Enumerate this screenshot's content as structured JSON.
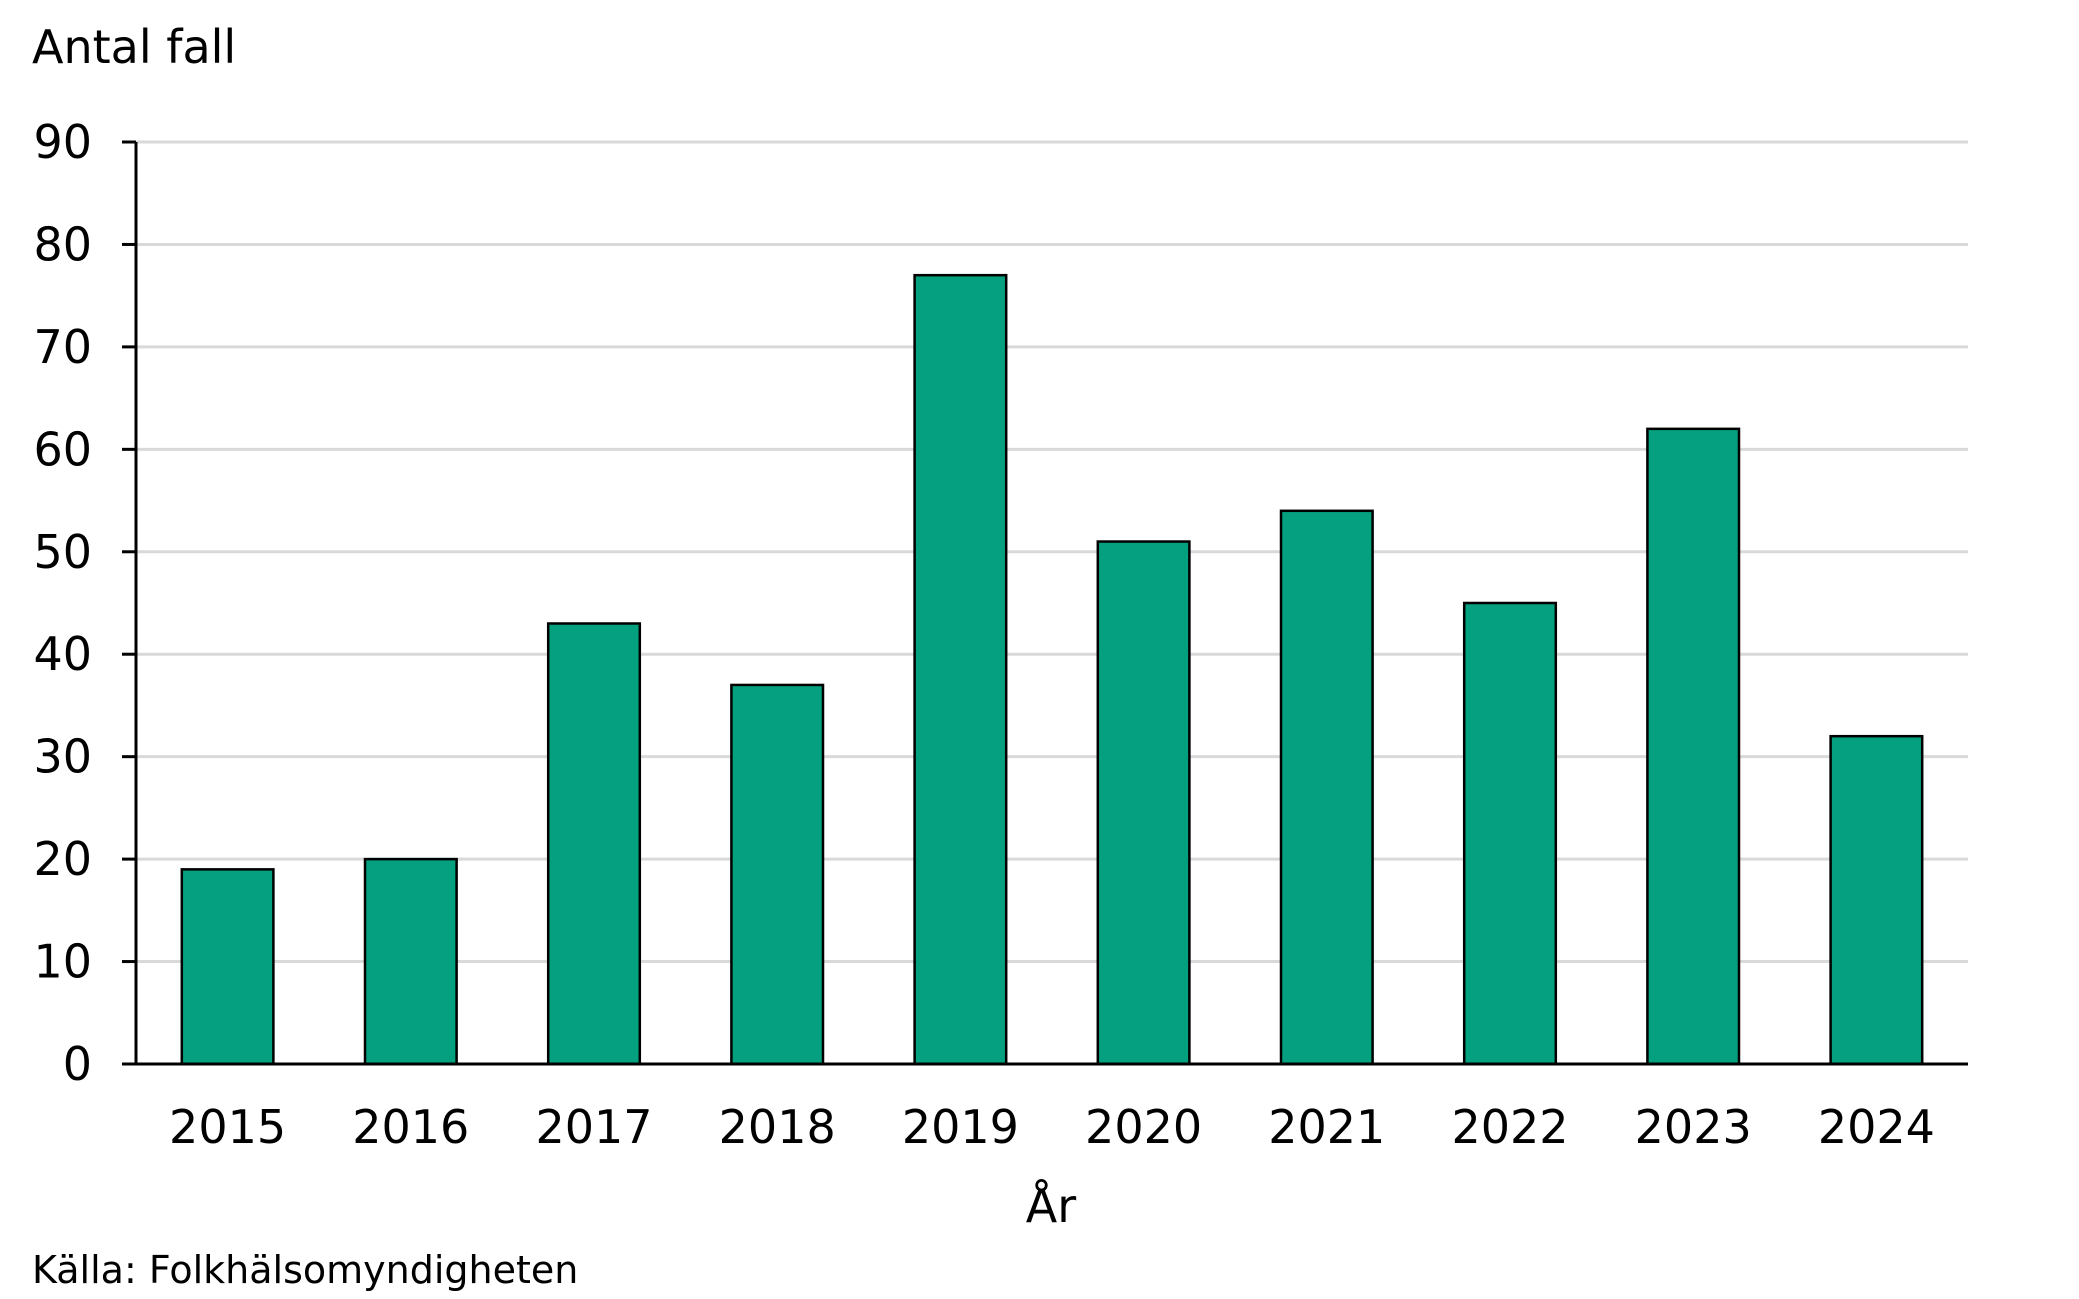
{
  "chart_data": {
    "type": "bar",
    "ylabel": "Antal fall",
    "xlabel": "År",
    "categories": [
      "2015",
      "2016",
      "2017",
      "2018",
      "2019",
      "2020",
      "2021",
      "2022",
      "2023",
      "2024"
    ],
    "values": [
      19,
      20,
      43,
      37,
      77,
      51,
      54,
      45,
      62,
      32
    ],
    "ylim": [
      0,
      90
    ],
    "yticks": [
      0,
      10,
      20,
      30,
      40,
      50,
      60,
      70,
      80,
      90
    ],
    "grid": true,
    "bar_color": "#04A07F",
    "grid_color": "#D9D9D9"
  },
  "source": "Källa: Folkhälsomyndigheten"
}
